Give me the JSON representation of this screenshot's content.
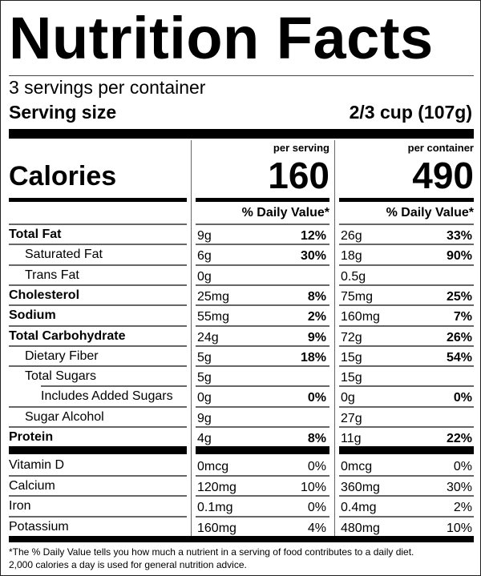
{
  "title": "Nutrition Facts",
  "servings_per_container": "3 servings per container",
  "serving_size": {
    "label": "Serving size",
    "value": "2/3 cup (107g)"
  },
  "calories": {
    "label": "Calories",
    "per_serving_label": "per serving",
    "per_container_label": "per container",
    "per_serving": "160",
    "per_container": "490"
  },
  "daily_value_header": "% Daily Value*",
  "nutrients": [
    {
      "name": "Total Fat",
      "bold": true,
      "indent": 0,
      "serving_amount": "9g",
      "serving_dv": "12%",
      "container_amount": "26g",
      "container_dv": "33%"
    },
    {
      "name": "Saturated Fat",
      "bold": false,
      "indent": 1,
      "serving_amount": "6g",
      "serving_dv": "30%",
      "container_amount": "18g",
      "container_dv": "90%"
    },
    {
      "name": "Trans Fat",
      "bold": false,
      "indent": 1,
      "serving_amount": "0g",
      "serving_dv": "",
      "container_amount": "0.5g",
      "container_dv": ""
    },
    {
      "name": "Cholesterol",
      "bold": true,
      "indent": 0,
      "serving_amount": "25mg",
      "serving_dv": "8%",
      "container_amount": "75mg",
      "container_dv": "25%"
    },
    {
      "name": "Sodium",
      "bold": true,
      "indent": 0,
      "serving_amount": "55mg",
      "serving_dv": "2%",
      "container_amount": "160mg",
      "container_dv": "7%"
    },
    {
      "name": "Total Carbohydrate",
      "bold": true,
      "indent": 0,
      "serving_amount": "24g",
      "serving_dv": "9%",
      "container_amount": "72g",
      "container_dv": "26%"
    },
    {
      "name": "Dietary Fiber",
      "bold": false,
      "indent": 1,
      "serving_amount": "5g",
      "serving_dv": "18%",
      "container_amount": "15g",
      "container_dv": "54%"
    },
    {
      "name": "Total Sugars",
      "bold": false,
      "indent": 1,
      "serving_amount": "5g",
      "serving_dv": "",
      "container_amount": "15g",
      "container_dv": ""
    },
    {
      "name": "Includes Added Sugars",
      "bold": false,
      "indent": 2,
      "serving_amount": "0g",
      "serving_dv": "0%",
      "container_amount": "0g",
      "container_dv": "0%"
    },
    {
      "name": "Sugar Alcohol",
      "bold": false,
      "indent": 1,
      "serving_amount": "9g",
      "serving_dv": "",
      "container_amount": "27g",
      "container_dv": ""
    },
    {
      "name": "Protein",
      "bold": true,
      "indent": 0,
      "serving_amount": "4g",
      "serving_dv": "8%",
      "container_amount": "11g",
      "container_dv": "22%"
    }
  ],
  "vitamins": [
    {
      "name": "Vitamin D",
      "serving_amount": "0mcg",
      "serving_dv": "0%",
      "container_amount": "0mcg",
      "container_dv": "0%"
    },
    {
      "name": "Calcium",
      "serving_amount": "120mg",
      "serving_dv": "10%",
      "container_amount": "360mg",
      "container_dv": "30%"
    },
    {
      "name": "Iron",
      "serving_amount": "0.1mg",
      "serving_dv": "0%",
      "container_amount": "0.4mg",
      "container_dv": "2%"
    },
    {
      "name": "Potassium",
      "serving_amount": "160mg",
      "serving_dv": "4%",
      "container_amount": "480mg",
      "container_dv": "10%"
    }
  ],
  "footnote": {
    "line1": "*The % Daily Value tells you how much a nutrient in a serving of food contributes to a daily diet.",
    "line2": "2,000 calories a day is used for general nutrition advice."
  }
}
